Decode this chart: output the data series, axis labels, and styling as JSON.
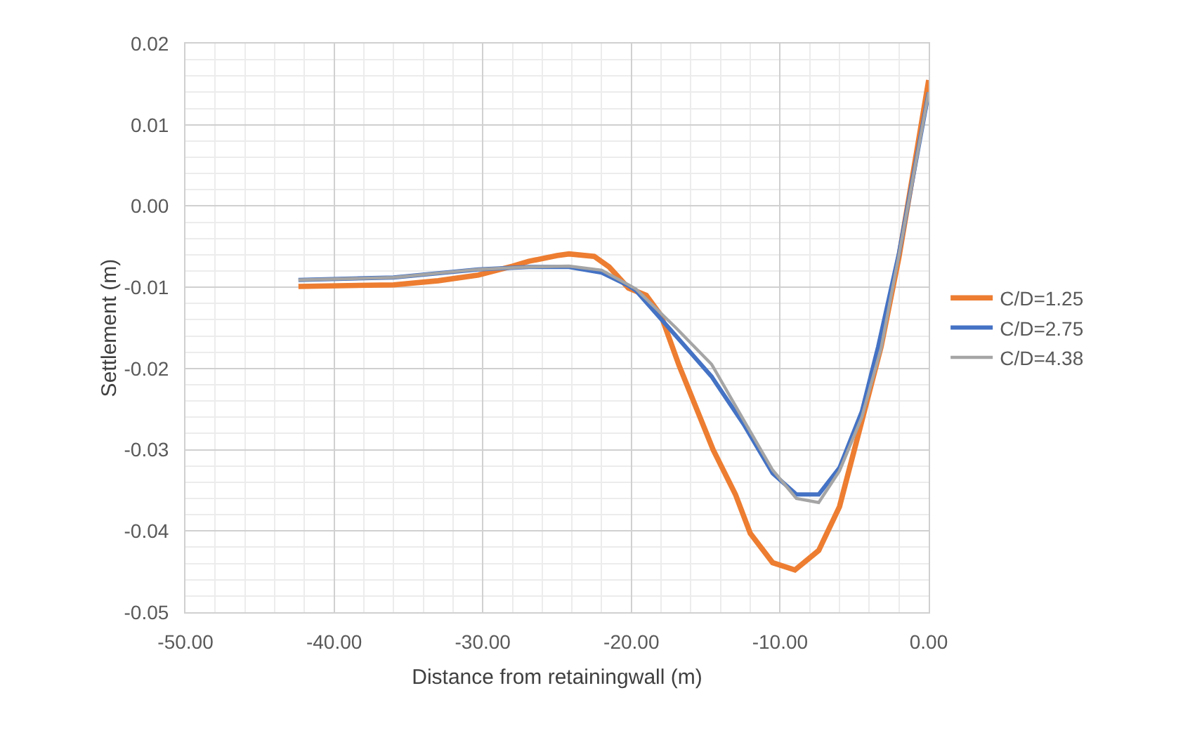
{
  "chart_data": {
    "type": "line",
    "xlabel": "Distance from retainingwall (m)",
    "ylabel": "Settlement (m)",
    "xlim": [
      -50,
      0
    ],
    "xticks": [
      {
        "value": -50,
        "label": "-50.00"
      },
      {
        "value": -40,
        "label": "-40.00"
      },
      {
        "value": -30,
        "label": "-30.00"
      },
      {
        "value": -20,
        "label": "-20.00"
      },
      {
        "value": -10,
        "label": "-10.00"
      },
      {
        "value": 0,
        "label": "0.00"
      }
    ],
    "ylim": [
      -0.05,
      0.02
    ],
    "yticks": [
      {
        "value": -0.05,
        "label": "-0.05"
      },
      {
        "value": -0.04,
        "label": "-0.04"
      },
      {
        "value": -0.03,
        "label": "-0.03"
      },
      {
        "value": -0.02,
        "label": "-0.02"
      },
      {
        "value": -0.01,
        "label": "-0.01"
      },
      {
        "value": 0,
        "label": "0.00"
      },
      {
        "value": 0.01,
        "label": "0.01"
      },
      {
        "value": 0.02,
        "label": "0.02"
      }
    ],
    "grid": true,
    "legend": "right",
    "marker": "none",
    "line_style": "solid",
    "series": [
      {
        "name": "C/D=1.25",
        "color": "#ed7d31",
        "x": [
          -42.4,
          -36,
          -33,
          -30.3,
          -28,
          -26.9,
          -25,
          -24.2,
          -22.5,
          -21.5,
          -20.2,
          -19,
          -18,
          -16.8,
          -14.5,
          -13,
          -12,
          -10.5,
          -9,
          -7.4,
          -6,
          -4.5,
          -3.2,
          -2,
          0
        ],
        "values": [
          -0.0099,
          -0.0097,
          -0.0092,
          -0.0085,
          -0.0074,
          -0.0068,
          -0.0061,
          -0.0059,
          -0.0062,
          -0.0075,
          -0.0101,
          -0.011,
          -0.0135,
          -0.0196,
          -0.03,
          -0.0355,
          -0.0403,
          -0.0439,
          -0.0448,
          -0.0424,
          -0.037,
          -0.0265,
          -0.0173,
          -0.0063,
          0.0155
        ]
      },
      {
        "name": "C/D=2.75",
        "color": "#4472c4",
        "x": [
          -42.4,
          -36,
          -30.3,
          -26.9,
          -24.2,
          -22,
          -20.2,
          -19.7,
          -17,
          -14.6,
          -12.4,
          -10.5,
          -8.9,
          -7.4,
          -6,
          -4.5,
          -3.4,
          -2,
          0
        ],
        "values": [
          -0.0091,
          -0.0088,
          -0.0078,
          -0.0075,
          -0.0075,
          -0.0082,
          -0.0098,
          -0.0104,
          -0.016,
          -0.021,
          -0.027,
          -0.0329,
          -0.0355,
          -0.0355,
          -0.0322,
          -0.0253,
          -0.0173,
          -0.0058,
          0.014
        ]
      },
      {
        "name": "C/D=4.38",
        "color": "#a5a5a5",
        "x": [
          -42.4,
          -36,
          -30.3,
          -26.9,
          -24.2,
          -22,
          -20.2,
          -19.7,
          -17,
          -14.6,
          -12.4,
          -10.5,
          -8.9,
          -7.4,
          -6,
          -4.5,
          -3.2,
          -2,
          0
        ],
        "values": [
          -0.0091,
          -0.0088,
          -0.0078,
          -0.0075,
          -0.0074,
          -0.0079,
          -0.0097,
          -0.0102,
          -0.015,
          -0.0195,
          -0.0265,
          -0.0325,
          -0.036,
          -0.0365,
          -0.0326,
          -0.026,
          -0.0175,
          -0.006,
          0.014
        ]
      }
    ]
  }
}
